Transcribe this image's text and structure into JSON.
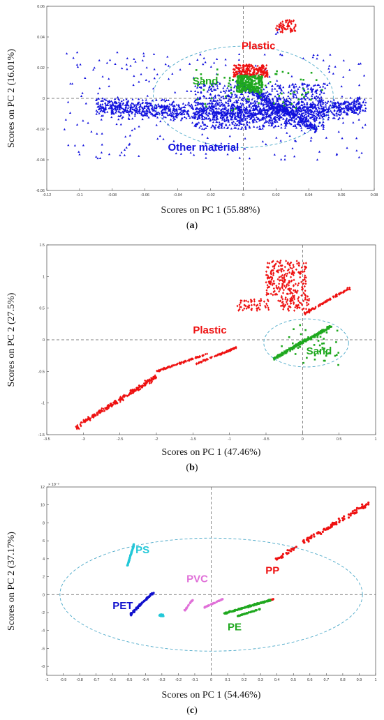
{
  "chart_data": [
    {
      "type": "scatter",
      "panel_label": "(a)",
      "xlabel": "Scores on PC 1 (55.88%)",
      "ylabel": "Scores on PC 2 (16.01%)",
      "xlim": [
        -0.12,
        0.08
      ],
      "ylim": [
        -0.06,
        0.06
      ],
      "xticks": [
        -0.12,
        -0.1,
        -0.08,
        -0.06,
        -0.04,
        -0.02,
        0,
        0.02,
        0.04,
        0.06,
        0.08
      ],
      "xtick_labels": [
        "-0.12",
        "-0.1",
        "-0.08",
        "-0.06",
        "-0.04",
        "-0.02",
        "0",
        "0.02",
        "0.04",
        "0.06",
        "0.08"
      ],
      "yticks": [
        -0.06,
        -0.04,
        -0.02,
        0,
        0.02,
        0.04,
        0.06
      ],
      "ytick_labels": [
        "-0.06",
        "-0.04",
        "-0.02",
        "0",
        "0.02",
        "0.04",
        "0.06"
      ],
      "grid": false,
      "confidence_ellipse": {
        "cx": 0.0,
        "cy": 0.001,
        "rx": 0.055,
        "ry": 0.033,
        "color": "#4aa8c8"
      },
      "groups": [
        {
          "name": "Other material",
          "color": "#1010dd",
          "marker": "triangle",
          "label_pos": {
            "x": -0.046,
            "y": -0.034
          },
          "clusters": [
            {
              "x": [
                -0.09,
                0.075
              ],
              "y": [
                -0.014,
                0.004
              ],
              "n": 1300,
              "shape": "band"
            },
            {
              "x": [
                -0.03,
                0.05
              ],
              "y": [
                -0.02,
                0.01
              ],
              "n": 800,
              "shape": "box"
            },
            {
              "x": [
                -0.11,
                0.075
              ],
              "y": [
                -0.04,
                0.03
              ],
              "n": 300,
              "shape": "box"
            },
            {
              "x": [
                0.0,
                0.045
              ],
              "y": [
                -0.02,
                0.008
              ],
              "n": 300,
              "shape": "wedge"
            }
          ],
          "extra_points": [
            [
              0.021,
              0.043
            ],
            [
              0.022,
              0.045
            ],
            [
              0.02,
              0.042
            ]
          ]
        },
        {
          "name": "Plastic",
          "color": "#ee1111",
          "marker": "diamond",
          "label_pos": {
            "x": -0.001,
            "y": 0.032
          },
          "clusters": [
            {
              "x": [
                -0.006,
                0.015
              ],
              "y": [
                0.014,
                0.022
              ],
              "n": 220,
              "shape": "box"
            },
            {
              "x": [
                0.02,
                0.032
              ],
              "y": [
                0.043,
                0.051
              ],
              "n": 60,
              "shape": "box"
            }
          ]
        },
        {
          "name": "Sand",
          "color": "#1fa81f",
          "marker": "square",
          "label_pos": {
            "x": -0.031,
            "y": 0.009
          },
          "clusters": [
            {
              "x": [
                -0.004,
                0.012
              ],
              "y": [
                0.004,
                0.015
              ],
              "n": 260,
              "shape": "box"
            },
            {
              "x": [
                -0.03,
                0.05
              ],
              "y": [
                -0.008,
                0.02
              ],
              "n": 60,
              "shape": "box"
            }
          ]
        }
      ]
    },
    {
      "type": "scatter",
      "panel_label": "(b)",
      "xlabel": "Scores on PC 1 (47.46%)",
      "ylabel": "Scores on PC 2 (27.5%)",
      "xlim": [
        -3.5,
        1
      ],
      "ylim": [
        -1.5,
        1.5
      ],
      "xticks": [
        -3.5,
        -3,
        -2.5,
        -2,
        -1.5,
        -1,
        -0.5,
        0,
        0.5,
        1
      ],
      "xtick_labels": [
        "-3.5",
        "-3",
        "-2.5",
        "-2",
        "-1.5",
        "-1",
        "-0.5",
        "0",
        "0.5",
        "1"
      ],
      "yticks": [
        -1.5,
        -1,
        -0.5,
        0,
        0.5,
        1,
        1.5
      ],
      "ytick_labels": [
        "-1.5",
        "-1",
        "-0.5",
        "0",
        "0.5",
        "1",
        "1.5"
      ],
      "grid": false,
      "confidence_ellipse": {
        "cx": 0.05,
        "cy": -0.05,
        "rx": 0.58,
        "ry": 0.38,
        "color": "#4aa8c8"
      },
      "groups": [
        {
          "name": "Plastic",
          "color": "#ee1111",
          "marker": "diamond",
          "label_pos": {
            "x": -1.5,
            "y": 0.1
          },
          "clusters": [
            {
              "x": [
                -3.1,
                -2.0
              ],
              "y": [
                -1.38,
                -0.58
              ],
              "n": 250,
              "shape": "line"
            },
            {
              "x": [
                -2.0,
                -1.3
              ],
              "y": [
                -0.5,
                -0.22
              ],
              "n": 90,
              "shape": "line"
            },
            {
              "x": [
                -1.5,
                -0.9
              ],
              "y": [
                -0.4,
                -0.12
              ],
              "n": 80,
              "shape": "line"
            },
            {
              "x": [
                -0.9,
                -0.45
              ],
              "y": [
                0.45,
                0.65
              ],
              "n": 60,
              "shape": "box"
            },
            {
              "x": [
                -0.5,
                0.05
              ],
              "y": [
                0.7,
                1.25
              ],
              "n": 220,
              "shape": "box"
            },
            {
              "x": [
                -0.35,
                0.1
              ],
              "y": [
                0.45,
                0.7
              ],
              "n": 80,
              "shape": "box"
            },
            {
              "x": [
                0.0,
                0.65
              ],
              "y": [
                0.4,
                0.82
              ],
              "n": 90,
              "shape": "line"
            }
          ]
        },
        {
          "name": "Sand",
          "color": "#1fa81f",
          "marker": "square",
          "label_pos": {
            "x": 0.05,
            "y": -0.23
          },
          "clusters": [
            {
              "x": [
                -0.4,
                0.4
              ],
              "y": [
                -0.3,
                0.22
              ],
              "n": 260,
              "shape": "line"
            },
            {
              "x": [
                -0.3,
                0.5
              ],
              "y": [
                -0.4,
                0.25
              ],
              "n": 40,
              "shape": "box"
            }
          ]
        }
      ]
    },
    {
      "type": "scatter",
      "panel_label": "(c)",
      "xlabel": "Scores on PC 1 (54.46%)",
      "ylabel": "Scores on PC 2 (37.17%)",
      "y_multiplier": "× 10⁻³",
      "xlim": [
        -1,
        1
      ],
      "ylim": [
        -9,
        12
      ],
      "xticks": [
        -1,
        -0.9,
        -0.8,
        -0.7,
        -0.6,
        -0.5,
        -0.4,
        -0.3,
        -0.2,
        -0.1,
        0,
        0.1,
        0.2,
        0.3,
        0.4,
        0.5,
        0.6,
        0.7,
        0.8,
        0.9,
        1
      ],
      "xtick_labels": [
        "-1",
        "-0.9",
        "-0.8",
        "-0.7",
        "-0.6",
        "-0.5",
        "-0.4",
        "-0.3",
        "-0.2",
        "-0.1",
        "0",
        "0.1",
        "0.2",
        "0.3",
        "0.4",
        "0.5",
        "0.6",
        "0.7",
        "0.8",
        "0.9",
        "1"
      ],
      "yticks": [
        -8,
        -6,
        -4,
        -2,
        0,
        2,
        4,
        6,
        8,
        10,
        12
      ],
      "ytick_labels": [
        "-8",
        "-6",
        "-4",
        "-2",
        "0",
        "2",
        "4",
        "6",
        "8",
        "10",
        "12"
      ],
      "grid": false,
      "confidence_ellipse": {
        "cx": 0.0,
        "cy": 0.0,
        "rx": 0.92,
        "ry": 6.3,
        "color": "#4aa8c8"
      },
      "groups": [
        {
          "name": "PS",
          "color": "#22c8d8",
          "marker": "dot",
          "label_pos": {
            "x": -0.46,
            "y": 4.6
          },
          "clusters": [
            {
              "x": [
                -0.51,
                -0.47
              ],
              "y": [
                3.2,
                5.6
              ],
              "n": 60,
              "shape": "line"
            },
            {
              "x": [
                -0.32,
                -0.29
              ],
              "y": [
                -2.4,
                -2.2
              ],
              "n": 12,
              "shape": "box"
            }
          ]
        },
        {
          "name": "PET",
          "color": "#1010cc",
          "marker": "dot",
          "label_pos": {
            "x": -0.6,
            "y": -1.6
          },
          "clusters": [
            {
              "x": [
                -0.49,
                -0.35
              ],
              "y": [
                -2.2,
                0.3
              ],
              "n": 70,
              "shape": "line"
            }
          ]
        },
        {
          "name": "PVC",
          "color": "#e070d8",
          "marker": "dot",
          "label_pos": {
            "x": -0.15,
            "y": 1.4
          },
          "clusters": [
            {
              "x": [
                -0.17,
                -0.11
              ],
              "y": [
                -2.0,
                -0.5
              ],
              "n": 20,
              "shape": "line"
            },
            {
              "x": [
                -0.05,
                0.07
              ],
              "y": [
                -1.5,
                -0.5
              ],
              "n": 35,
              "shape": "line"
            }
          ]
        },
        {
          "name": "PP",
          "color": "#ee1111",
          "marker": "dot",
          "label_pos": {
            "x": 0.33,
            "y": 2.3
          },
          "clusters": [
            {
              "x": [
                0.4,
                0.96
              ],
              "y": [
                4.0,
                10.2
              ],
              "n": 110,
              "shape": "line"
            },
            {
              "x": [
                0.25,
                0.38
              ],
              "y": [
                -1.2,
                -0.5
              ],
              "n": 30,
              "shape": "line"
            }
          ]
        },
        {
          "name": "PE",
          "color": "#1fa81f",
          "marker": "dot",
          "label_pos": {
            "x": 0.1,
            "y": -4.0
          },
          "clusters": [
            {
              "x": [
                0.08,
                0.36
              ],
              "y": [
                -2.1,
                -0.6
              ],
              "n": 140,
              "shape": "line"
            },
            {
              "x": [
                0.16,
                0.3
              ],
              "y": [
                -2.4,
                -1.6
              ],
              "n": 40,
              "shape": "line"
            }
          ]
        }
      ]
    }
  ]
}
